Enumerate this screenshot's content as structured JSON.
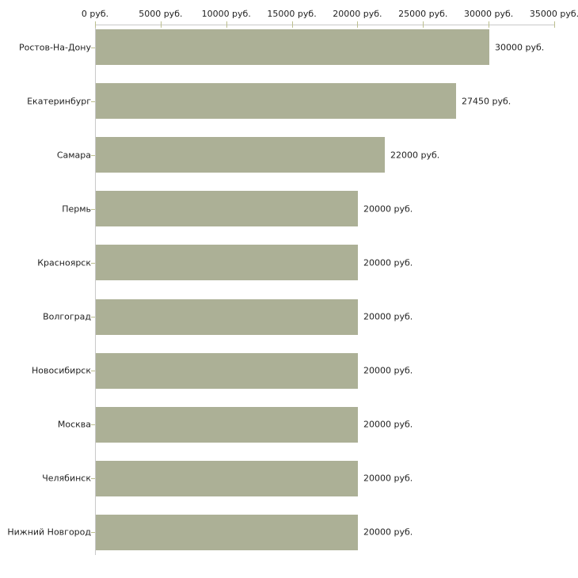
{
  "chart_data": {
    "type": "bar",
    "orientation": "horizontal",
    "title": "",
    "xlabel": "",
    "ylabel": "",
    "unit": "руб.",
    "categories": [
      "Ростов-На-Дону",
      "Екатеринбург",
      "Самара",
      "Пермь",
      "Красноярск",
      "Волгоград",
      "Новосибирск",
      "Москва",
      "Челябинск",
      "Нижний Новгород"
    ],
    "values": [
      30000,
      27450,
      22000,
      20000,
      20000,
      20000,
      20000,
      20000,
      20000,
      20000
    ],
    "value_labels": [
      "30000 руб.",
      "27450 руб.",
      "22000 руб.",
      "20000 руб.",
      "20000 руб.",
      "20000 руб.",
      "20000 руб.",
      "20000 руб.",
      "20000 руб.",
      "20000 руб."
    ],
    "xlim": [
      0,
      35000
    ],
    "x_tick_values": [
      0,
      5000,
      10000,
      15000,
      20000,
      25000,
      30000,
      35000
    ],
    "x_tick_labels": [
      "0 руб.",
      "5000 руб.",
      "10000 руб.",
      "15000 руб.",
      "20000 руб.",
      "25000 руб.",
      "30000 руб.",
      "35000 руб."
    ],
    "x_axis_position": "top",
    "grid": false,
    "legend": false,
    "colors": {
      "bar": "#acb096",
      "axis_line": "#c9c9c9",
      "tick_mark": "#bcbf8e",
      "text": "#1f1f1f",
      "background": "#ffffff"
    }
  }
}
